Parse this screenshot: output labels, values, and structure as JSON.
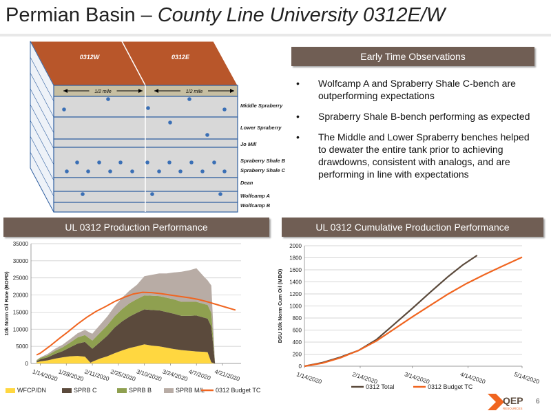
{
  "title_main": "Permian Basin – ",
  "title_italic": "County Line University 0312E/W",
  "obs_header": "Early Time Observations",
  "bullets": [
    "Wolfcamp A and Spraberry Shale C-bench are outperforming expectations",
    "Spraberry Shale B-bench performing as expected",
    "The Middle and Lower Spraberry benches helped to dewater the entire tank prior to achieving drawdowns, consistent with analogs, and are performing in line with expectations"
  ],
  "diagram": {
    "units": [
      "0312W",
      "0312E"
    ],
    "spacing_label": "1/2 mile",
    "layers": [
      "Middle Spraberry",
      "Lower Spraberry",
      "Jo Mill",
      "Spraberry Shale B",
      "Spraberry Shale C",
      "Dean",
      "Wolfcamp A",
      "Wolfcamp B"
    ],
    "colors": {
      "top": "#b8562a",
      "layer": "#d8d8d8",
      "band": "#c7bfa2",
      "well": "#3a6fb5"
    }
  },
  "chart1_header": "UL 0312 Production Performance",
  "chart2_header": "UL 0312 Cumulative Production Performance",
  "logo_text": "QEP",
  "logo_sub": "RESOURCES",
  "page_number": "6",
  "chart_data": [
    {
      "type": "area",
      "stacked": true,
      "ylabel": "10k Norm Oil Rate (BOPD)",
      "ylim": [
        0,
        35000
      ],
      "yticks": [
        "0",
        "5000",
        "10000",
        "15000",
        "20000",
        "25000",
        "30000",
        "35000"
      ],
      "xticks": [
        "1/14/2020",
        "1/28/2020",
        "2/11/2020",
        "2/25/2020",
        "3/10/2020",
        "3/24/2020",
        "4/7/2020",
        "4/21/2020"
      ],
      "x_day_ticks": [
        0,
        14,
        28,
        42,
        56,
        70,
        84,
        98
      ],
      "x_range_days": [
        -5,
        108
      ],
      "x_days": [
        -2,
        0,
        4,
        8,
        12,
        16,
        20,
        24,
        27,
        28,
        32,
        36,
        40,
        44,
        48,
        52,
        56,
        60,
        64,
        68,
        72,
        76,
        80,
        84,
        88,
        90,
        92,
        94
      ],
      "series": [
        {
          "name": "WFCP/DN",
          "color": "#ffd740",
          "values": [
            300,
            600,
            900,
            1400,
            1800,
            2100,
            2200,
            2000,
            200,
            500,
            1400,
            2100,
            3000,
            3800,
            4500,
            5000,
            5600,
            5200,
            5000,
            4600,
            4200,
            3900,
            3700,
            3500,
            3400,
            3300,
            300,
            0
          ]
        },
        {
          "name": "SPRB C",
          "color": "#5b4a3c",
          "values": [
            300,
            600,
            900,
            1400,
            1800,
            2600,
            3600,
            4300,
            4600,
            3800,
            4800,
            6000,
            7500,
            8500,
            9200,
            9800,
            10200,
            10400,
            10500,
            10400,
            10300,
            10000,
            10200,
            10500,
            10000,
            9800,
            10500,
            0
          ]
        },
        {
          "name": "SPRB B",
          "color": "#8fa050",
          "values": [
            300,
            400,
            600,
            900,
            1100,
            1400,
            1800,
            2000,
            2300,
            2400,
            2700,
            3000,
            3300,
            3600,
            3900,
            4000,
            4100,
            4200,
            4200,
            4200,
            4200,
            4100,
            4100,
            4000,
            4000,
            4000,
            4000,
            0
          ]
        },
        {
          "name": "SPRB M/L",
          "color": "#b8aca5",
          "values": [
            100,
            200,
            400,
            600,
            800,
            1000,
            1200,
            1500,
            1800,
            2000,
            2300,
            2600,
            2900,
            3300,
            3700,
            4200,
            5600,
            6100,
            6600,
            7100,
            7900,
            8800,
            9200,
            9800,
            8000,
            7200,
            8000,
            0
          ]
        }
      ],
      "budget_line": {
        "name": "0312 Budget TC",
        "color": "#f06520",
        "x_days": [
          -2,
          0,
          5,
          10,
          15,
          20,
          25,
          30,
          35,
          40,
          45,
          50,
          55,
          60,
          65,
          70,
          75,
          80,
          85,
          90,
          95,
          100,
          105
        ],
        "values": [
          2500,
          3000,
          5000,
          7200,
          9300,
          11500,
          13500,
          15200,
          16600,
          18100,
          19300,
          20300,
          20800,
          20700,
          20400,
          20000,
          19600,
          19200,
          18700,
          18000,
          17200,
          16400,
          15600
        ]
      }
    },
    {
      "type": "line",
      "ylabel": "DSU 10k Norm Cum Oil (MBO)",
      "ylim": [
        0,
        2000
      ],
      "yticks": [
        "0",
        "200",
        "400",
        "600",
        "800",
        "1000",
        "1200",
        "1400",
        "1600",
        "1800",
        "2000"
      ],
      "xticks": [
        "1/14/2020",
        "2/14/2020",
        "3/14/2020",
        "4/14/2020",
        "5/14/2020"
      ],
      "x_day_ticks": [
        0,
        31,
        60,
        91,
        121
      ],
      "x_range_days": [
        0,
        121
      ],
      "series": [
        {
          "name": "0312 Total",
          "color": "#5b4a3c",
          "x_days": [
            0,
            10,
            20,
            30,
            40,
            50,
            60,
            70,
            80,
            88,
            96
          ],
          "values": [
            0,
            60,
            150,
            260,
            440,
            700,
            960,
            1230,
            1490,
            1680,
            1840
          ]
        },
        {
          "name": "0312 Budget TC",
          "color": "#f06520",
          "x_days": [
            0,
            10,
            20,
            30,
            40,
            50,
            60,
            70,
            80,
            90,
            100,
            110,
            121
          ],
          "values": [
            0,
            50,
            140,
            260,
            420,
            620,
            820,
            1010,
            1200,
            1370,
            1520,
            1660,
            1810
          ]
        }
      ]
    }
  ]
}
